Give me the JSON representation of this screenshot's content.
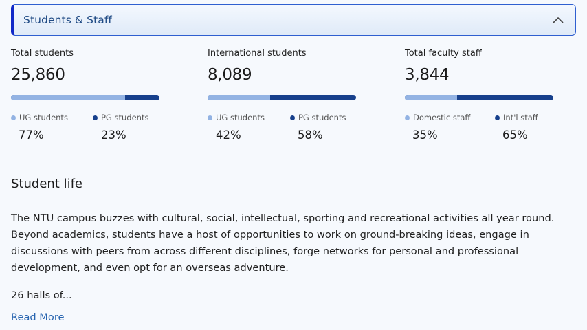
{
  "accordion": {
    "title": "Students & Staff",
    "icon": "chevron-up-icon"
  },
  "stats": [
    {
      "label": "Total students",
      "value": "25,860",
      "split_fraction": 0.77,
      "legend": [
        {
          "label": "UG students",
          "percent": "77%",
          "color": "#93b3e3"
        },
        {
          "label": "PG students",
          "percent": "23%",
          "color": "#17408c"
        }
      ]
    },
    {
      "label": "International students",
      "value": "8,089",
      "split_fraction": 0.42,
      "legend": [
        {
          "label": "UG students",
          "percent": "42%",
          "color": "#93b3e3"
        },
        {
          "label": "PG students",
          "percent": "58%",
          "color": "#17408c"
        }
      ]
    },
    {
      "label": "Total faculty staff",
      "value": "3,844",
      "split_fraction": 0.35,
      "legend": [
        {
          "label": "Domestic staff",
          "percent": "35%",
          "color": "#93b3e3"
        },
        {
          "label": "Int'l staff",
          "percent": "65%",
          "color": "#17408c"
        }
      ]
    }
  ],
  "student_life": {
    "title": "Student life",
    "paragraph": "The NTU campus buzzes with cultural, social, intellectual, sporting and recreational activities all year round. Beyond academics, students have a host of opportunities to work on ground-breaking ideas, engage in discussions with peers from across different disciplines, forge networks for personal and professional development, and even opt for an overseas adventure.",
    "teaser": "26 halls of...",
    "read_more": "Read More"
  },
  "colors": {
    "accent_border": "#1028c8",
    "link": "#2865b0",
    "bar_light": "#93b3e3",
    "bar_dark": "#17408c"
  }
}
